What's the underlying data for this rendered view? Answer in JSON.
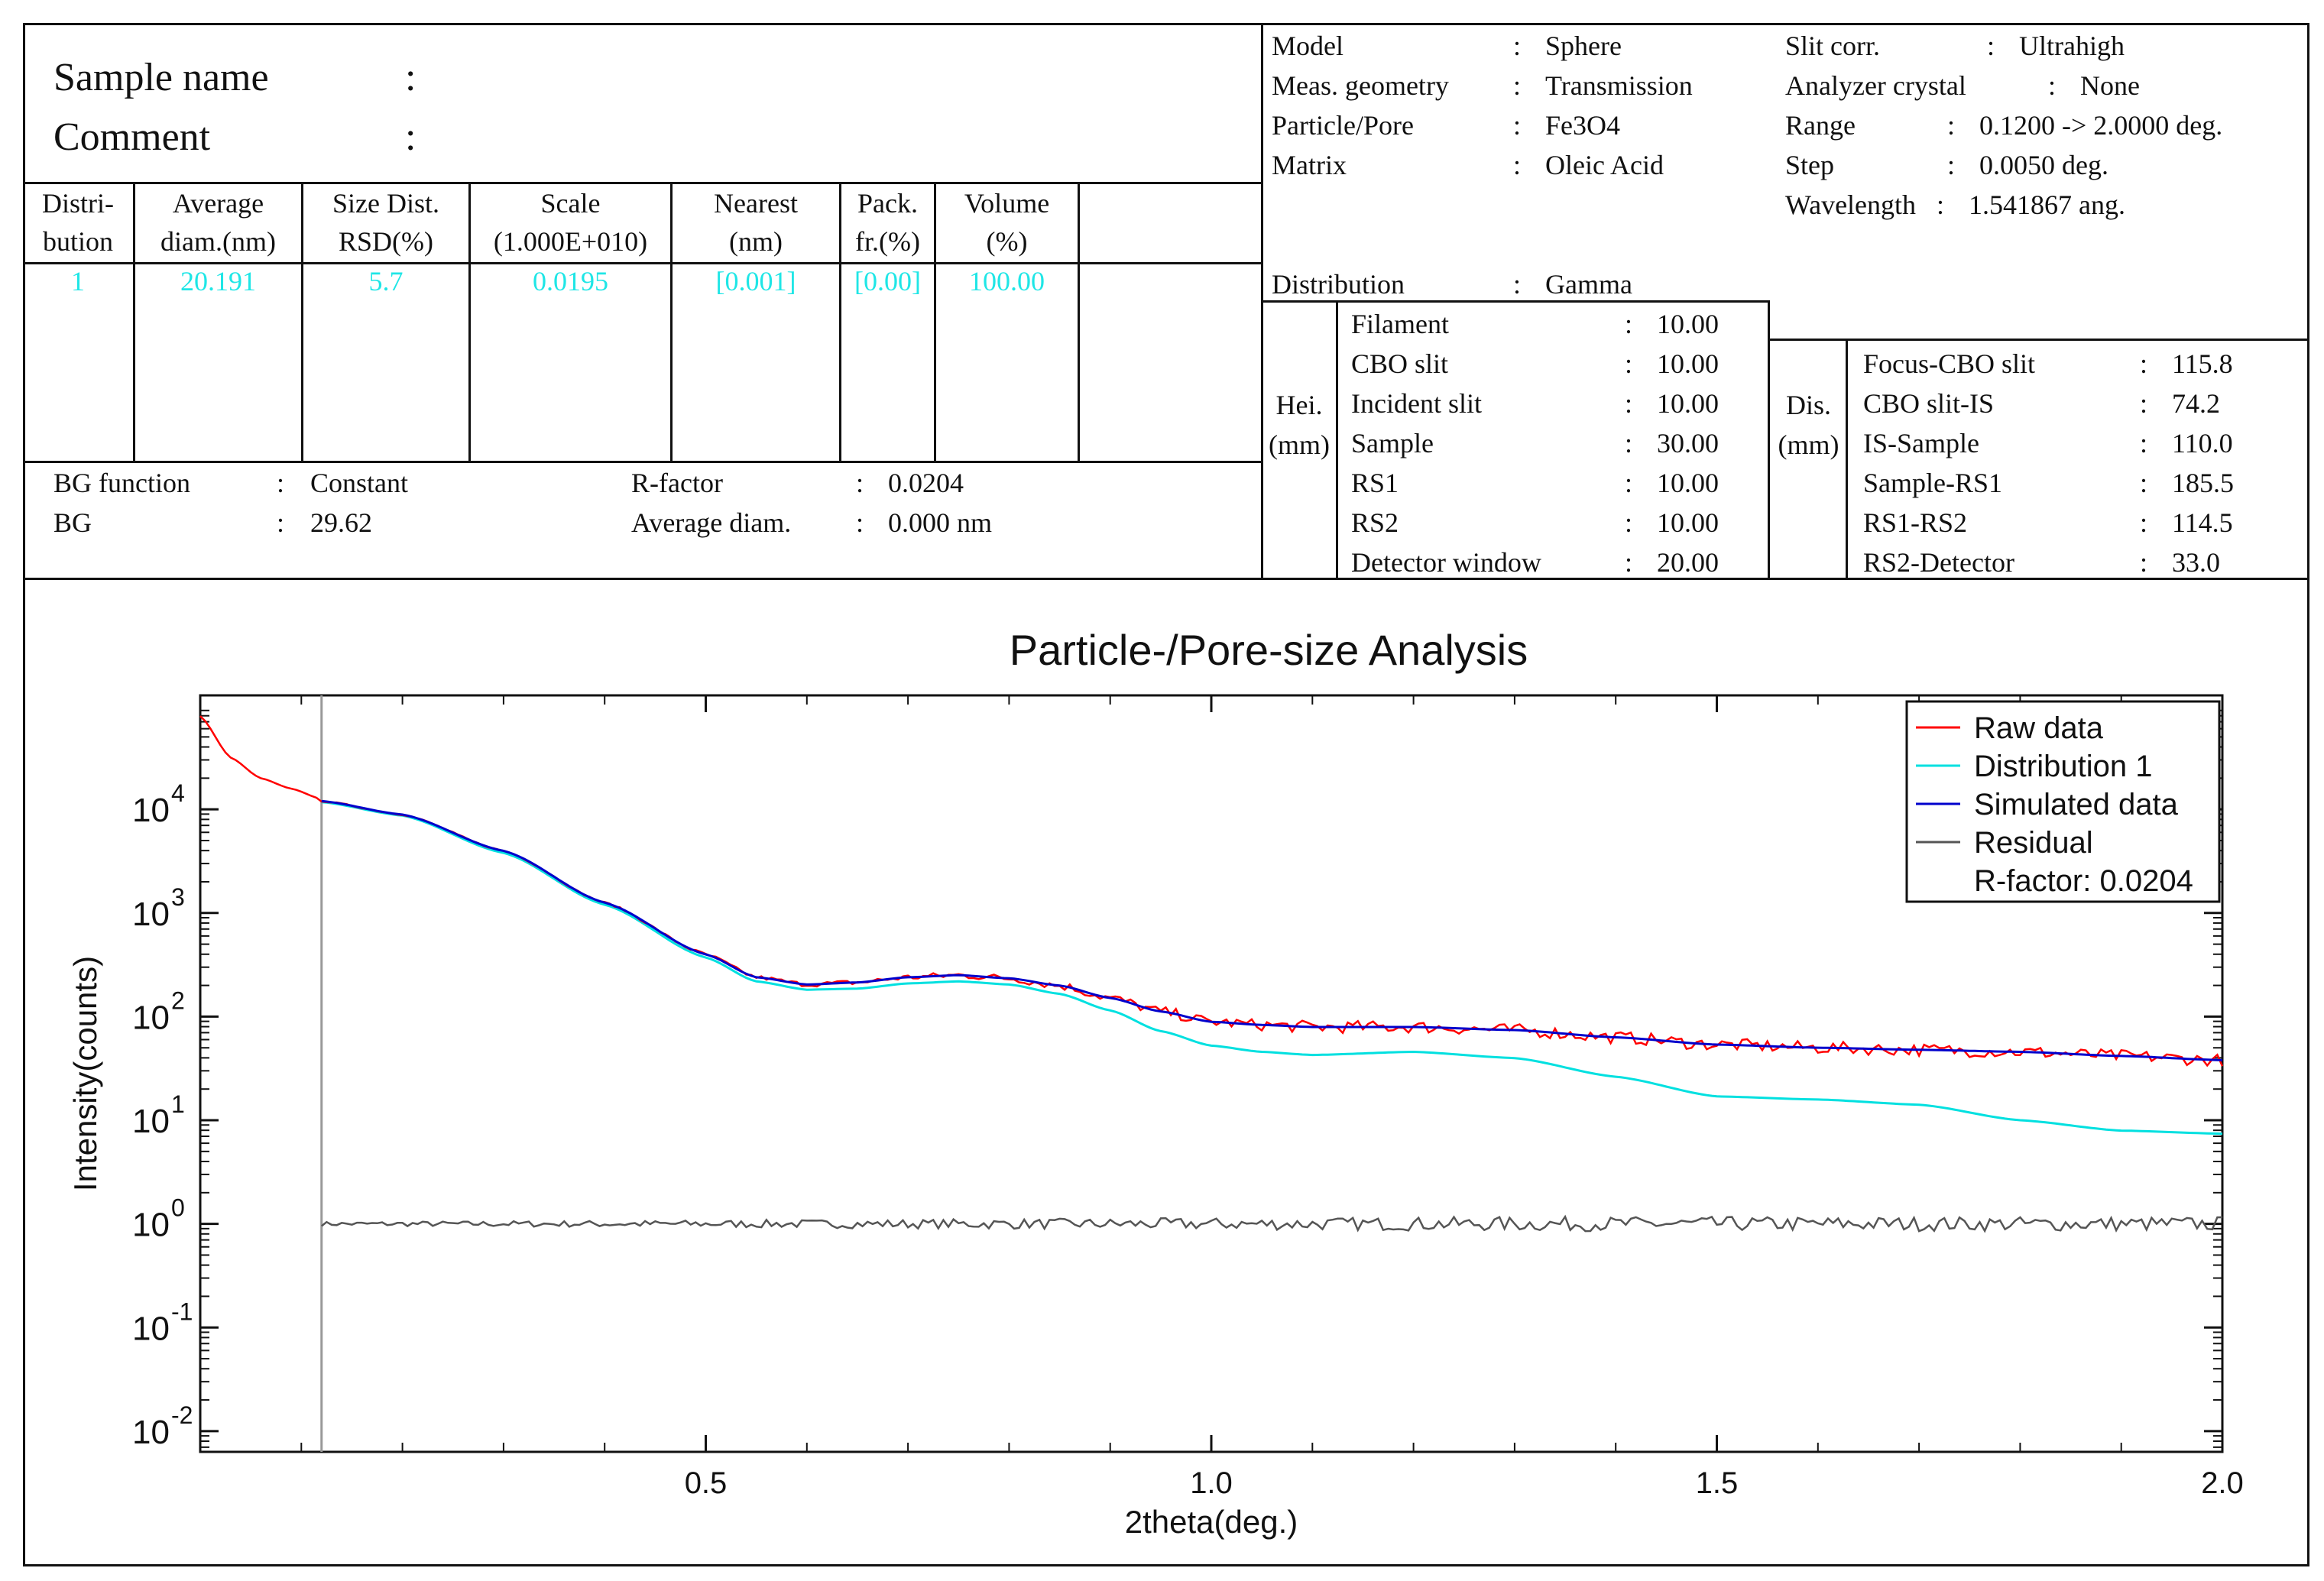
{
  "header": {
    "sample_label": "Sample name",
    "comment_label": "Comment",
    "colon": ":"
  },
  "dist_table": {
    "headers": [
      [
        "Distri-",
        "bution"
      ],
      [
        "Average",
        "diam.(nm)"
      ],
      [
        "Size Dist.",
        "RSD(%)"
      ],
      [
        "Scale",
        "(1.000E+010)"
      ],
      [
        "Nearest",
        "(nm)"
      ],
      [
        "Pack.",
        "fr.(%)"
      ],
      [
        "Volume",
        "(%)"
      ]
    ],
    "row": [
      "1",
      "20.191",
      "5.7",
      "0.0195",
      "[0.001]",
      "[0.00]",
      "100.00"
    ]
  },
  "bg": {
    "function_label": "BG function",
    "function_value": "Constant",
    "bg_label": "BG",
    "bg_value": "29.62",
    "rfactor_label": "R-factor",
    "rfactor_value": "0.0204",
    "avgdiam_label": "Average diam.",
    "avgdiam_value": "0.000 nm"
  },
  "model": {
    "rows": [
      {
        "label": "Model",
        "value": "Sphere"
      },
      {
        "label": "Meas. geometry",
        "value": "Transmission"
      },
      {
        "label": "Particle/Pore",
        "value": "Fe3O4"
      },
      {
        "label": "Matrix",
        "value": "Oleic Acid"
      }
    ],
    "right_rows": [
      {
        "label": "Slit corr.",
        "value": "Ultrahigh"
      },
      {
        "label": "Analyzer crystal",
        "value": "None"
      },
      {
        "label": "Range",
        "value": "0.1200 -> 2.0000 deg."
      },
      {
        "label": "Step",
        "value": "0.0050 deg."
      },
      {
        "label": "Wavelength",
        "value": "1.541867 ang."
      }
    ],
    "distribution_label": "Distribution",
    "distribution_value": "Gamma"
  },
  "heights": {
    "side_label_1": "Hei.",
    "side_label_2": "(mm)",
    "rows": [
      {
        "label": "Filament",
        "value": "10.00"
      },
      {
        "label": "CBO slit",
        "value": "10.00"
      },
      {
        "label": "Incident slit",
        "value": "10.00"
      },
      {
        "label": "Sample",
        "value": "30.00"
      },
      {
        "label": "RS1",
        "value": "10.00"
      },
      {
        "label": "RS2",
        "value": "10.00"
      },
      {
        "label": "Detector window",
        "value": "20.00"
      }
    ]
  },
  "distances": {
    "side_label_1": "Dis.",
    "side_label_2": "(mm)",
    "rows": [
      {
        "label": "Focus-CBO slit",
        "value": "115.8"
      },
      {
        "label": "CBO slit-IS",
        "value": "74.2"
      },
      {
        "label": "IS-Sample",
        "value": "110.0"
      },
      {
        "label": "Sample-RS1",
        "value": "185.5"
      },
      {
        "label": "RS1-RS2",
        "value": "114.5"
      },
      {
        "label": "RS2-Detector",
        "value": "33.0"
      }
    ]
  },
  "colors": {
    "raw": "#ff0000",
    "dist": "#00e0e0",
    "sim": "#0000cc",
    "resid": "#555555",
    "value_text": "#1fe6e6"
  },
  "chart_data": {
    "type": "line",
    "title": "Particle-/Pore-size Analysis",
    "xlabel": "2theta(deg.)",
    "ylabel": "Intensity(counts)",
    "xlim": [
      0.0,
      2.0
    ],
    "ylog_range": [
      -2,
      5
    ],
    "x_ticks": [
      "0.5",
      "1.0",
      "1.5",
      "2.0"
    ],
    "x_tick_values": [
      0.5,
      1.0,
      1.5,
      2.0
    ],
    "y_tick_bases": [
      "10",
      "10",
      "10",
      "10",
      "10",
      "10",
      "10"
    ],
    "y_tick_exps": [
      "4",
      "3",
      "2",
      "1",
      "0",
      "-1",
      "-2"
    ],
    "y_tick_values": [
      4,
      3,
      2,
      1,
      0,
      -1,
      -2
    ],
    "range_marker_x": 0.12,
    "legend": {
      "position": "top-right",
      "entries": [
        "Raw data",
        "Distribution 1",
        "Simulated data",
        "Residual"
      ],
      "note": "R-factor: 0.0204"
    },
    "x": [
      0.12,
      0.2,
      0.3,
      0.4,
      0.5,
      0.55,
      0.6,
      0.65,
      0.7,
      0.75,
      0.8,
      0.85,
      0.9,
      0.95,
      1.0,
      1.05,
      1.1,
      1.2,
      1.3,
      1.4,
      1.5,
      1.6,
      1.7,
      1.8,
      1.9,
      2.0
    ],
    "series": [
      {
        "name": "Simulated data",
        "log10_values": [
          4.08,
          3.95,
          3.6,
          3.1,
          2.6,
          2.38,
          2.31,
          2.33,
          2.38,
          2.4,
          2.37,
          2.3,
          2.18,
          2.05,
          1.95,
          1.92,
          1.9,
          1.9,
          1.87,
          1.8,
          1.73,
          1.7,
          1.68,
          1.66,
          1.62,
          1.58
        ]
      },
      {
        "name": "Distribution 1",
        "log10_values": [
          4.07,
          3.94,
          3.58,
          3.08,
          2.57,
          2.34,
          2.26,
          2.27,
          2.32,
          2.34,
          2.31,
          2.22,
          2.06,
          1.86,
          1.72,
          1.66,
          1.63,
          1.66,
          1.6,
          1.42,
          1.23,
          1.2,
          1.15,
          1.0,
          0.9,
          0.87
        ]
      }
    ],
    "raw_below_range": {
      "x": [
        0.0,
        0.03,
        0.06,
        0.09,
        0.12
      ],
      "log10_values": [
        4.9,
        4.5,
        4.3,
        4.2,
        4.1
      ]
    },
    "raw_noise_amplitude": 0.06,
    "residual_log10": 0,
    "residual_noise_amplitude": 0.07
  }
}
